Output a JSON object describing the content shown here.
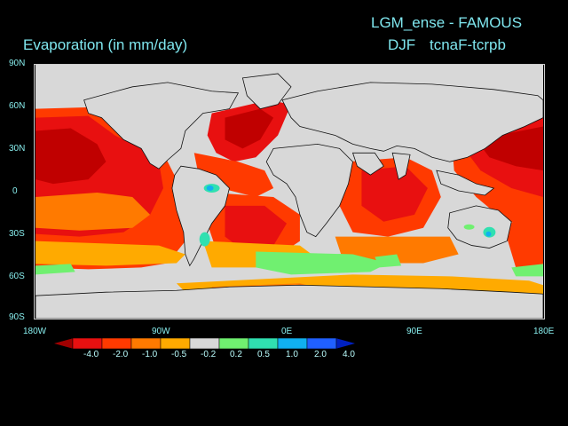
{
  "header": {
    "title_main": "LGM_ense - FAMOUS",
    "variable": "Evaporation (in mm/day)",
    "season": "DJF",
    "experiment": "tcnaF-tcrpb"
  },
  "axes": {
    "lat_labels": [
      "90N",
      "60N",
      "30N",
      "0",
      "30S",
      "60S",
      "90S"
    ],
    "lon_labels": [
      "180W",
      "90W",
      "0E",
      "90E",
      "180E"
    ]
  },
  "colorbar": {
    "labels": [
      "-4.0",
      "-2.0",
      "-1.0",
      "-0.5",
      "-0.2",
      "0.2",
      "0.5",
      "1.0",
      "2.0",
      "4.0"
    ],
    "colors": [
      "#a00000",
      "#e81010",
      "#ff3a00",
      "#ff7a00",
      "#ffaa00",
      "#d8d8d8",
      "#70f070",
      "#30e0b0",
      "#10b0f0",
      "#2060ff",
      "#0020c0"
    ]
  },
  "colors": {
    "land": "#d8d8d8",
    "ocean_base": "#ff3a00"
  }
}
